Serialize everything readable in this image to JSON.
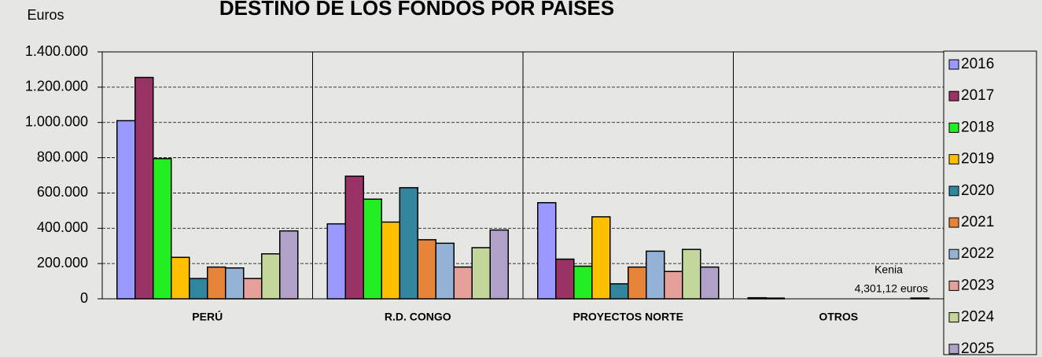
{
  "chart_data": {
    "type": "bar",
    "title": "DESTINO DE LOS FONDOS POR PAISES",
    "y_label": "Euros",
    "categories": [
      "PERÚ",
      "R.D. CONGO",
      "PROYECTOS NORTE",
      "OTROS"
    ],
    "series": [
      {
        "name": "2016",
        "color": "#9999ff",
        "values": [
          1010000,
          425000,
          545000,
          6000
        ]
      },
      {
        "name": "2017",
        "color": "#993366",
        "values": [
          1255000,
          695000,
          225000,
          4000
        ]
      },
      {
        "name": "2018",
        "color": "#22ee22",
        "values": [
          795000,
          565000,
          185000,
          0
        ]
      },
      {
        "name": "2019",
        "color": "#ffc000",
        "values": [
          235000,
          435000,
          465000,
          0
        ]
      },
      {
        "name": "2020",
        "color": "#31859c",
        "values": [
          115000,
          630000,
          85000,
          0
        ]
      },
      {
        "name": "2021",
        "color": "#e6843a",
        "values": [
          180000,
          335000,
          180000,
          0
        ]
      },
      {
        "name": "2022",
        "color": "#95b3d7",
        "values": [
          175000,
          315000,
          270000,
          0
        ]
      },
      {
        "name": "2023",
        "color": "#e6a09a",
        "values": [
          115000,
          180000,
          155000,
          0
        ]
      },
      {
        "name": "2024",
        "color": "#c4d79b",
        "values": [
          255000,
          290000,
          280000,
          0
        ]
      },
      {
        "name": "2025",
        "color": "#b1a0c7",
        "values": [
          385000,
          390000,
          180000,
          4301.12
        ]
      }
    ],
    "annotations": [
      "Kenia",
      "4,301,12 euros"
    ],
    "ylim": [
      0,
      1400000
    ],
    "yticks": [
      0,
      {
        "value": 200000,
        "label": "200.000"
      },
      {
        "value": 400000,
        "label": "400.000"
      },
      {
        "value": 600000,
        "label": "600.000"
      },
      {
        "value": 800000,
        "label": "800.000"
      },
      {
        "value": 1000000,
        "label": "1.000.000"
      },
      {
        "value": 1200000,
        "label": "1.200.000"
      },
      {
        "value": 1400000,
        "label": "1.400.000"
      }
    ],
    "grid": true,
    "legend": "right"
  }
}
